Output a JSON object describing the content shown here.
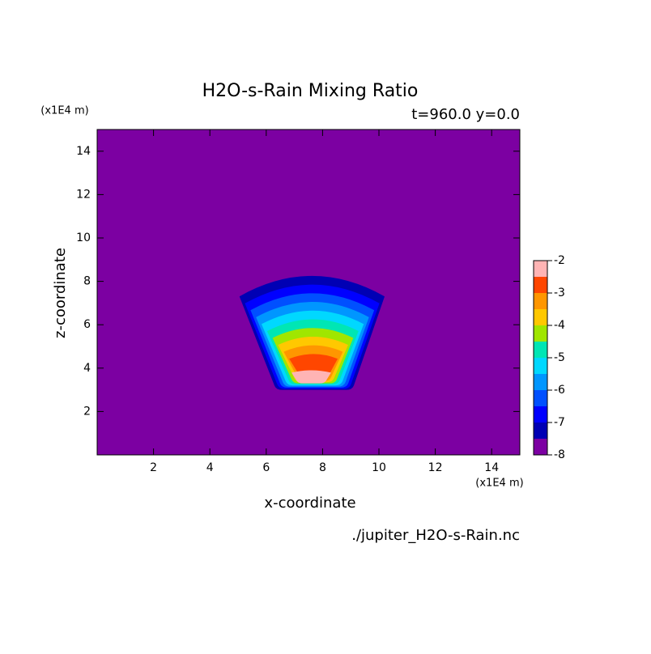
{
  "chart_data": {
    "type": "contourf",
    "title": "H2O-s-Rain Mixing Ratio",
    "subtitle": "t=960.0 y=0.0",
    "x_label": "x-coordinate",
    "y_label": "z-coordinate",
    "x_unit": "(x1E4 m)",
    "y_unit": "(x1E4 m)",
    "source": "./jupiter_H2O-s-Rain.nc",
    "xlim": [
      0,
      15
    ],
    "ylim": [
      0,
      15
    ],
    "xticks": [
      2,
      4,
      6,
      8,
      10,
      12,
      14
    ],
    "yticks": [
      2,
      4,
      6,
      8,
      10,
      12,
      14
    ],
    "levels": [
      -8,
      -7.5,
      -7,
      -6.5,
      -6,
      -5.5,
      -5,
      -4.5,
      -4,
      -3.5,
      -3,
      -2.5
    ],
    "colors": [
      "#7c00a2",
      "#0000b4",
      "#0000ff",
      "#0050ff",
      "#0096ff",
      "#00d8ff",
      "#00e6b4",
      "#a0e600",
      "#ffc800",
      "#ff9600",
      "#ff4600",
      "#ffb4b4"
    ],
    "colorbar_lim": [
      -8,
      -2
    ],
    "colorbar_ticks": [
      -8,
      -7,
      -6,
      -5,
      -4,
      -3,
      -2
    ]
  }
}
